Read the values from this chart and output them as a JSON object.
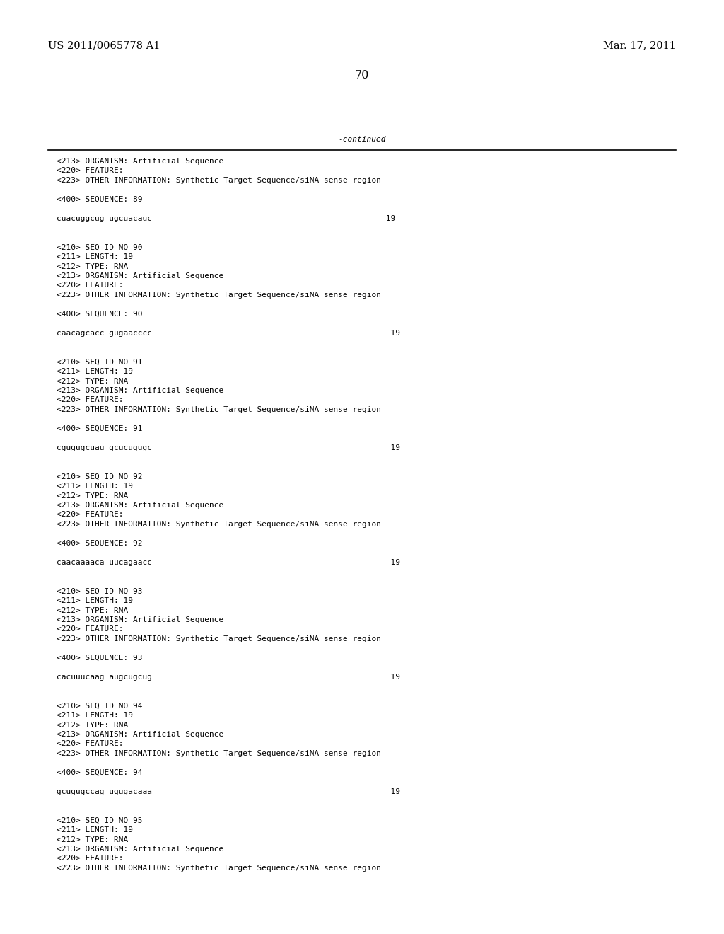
{
  "patent_left": "US 2011/0065778 A1",
  "patent_right": "Mar. 17, 2011",
  "page_number": "70",
  "continued_label": "-continued",
  "background_color": "#ffffff",
  "text_color": "#000000",
  "font_size_header": 10.5,
  "font_size_page": 11.5,
  "font_size_body": 8.0,
  "body_lines": [
    "<213> ORGANISM: Artificial Sequence",
    "<220> FEATURE:",
    "<223> OTHER INFORMATION: Synthetic Target Sequence/siNA sense region",
    "",
    "<400> SEQUENCE: 89",
    "",
    "cuacuggcug ugcuacauc                                                 19",
    "",
    "",
    "<210> SEQ ID NO 90",
    "<211> LENGTH: 19",
    "<212> TYPE: RNA",
    "<213> ORGANISM: Artificial Sequence",
    "<220> FEATURE:",
    "<223> OTHER INFORMATION: Synthetic Target Sequence/siNA sense region",
    "",
    "<400> SEQUENCE: 90",
    "",
    "caacagcacc gugaacccc                                                  19",
    "",
    "",
    "<210> SEQ ID NO 91",
    "<211> LENGTH: 19",
    "<212> TYPE: RNA",
    "<213> ORGANISM: Artificial Sequence",
    "<220> FEATURE:",
    "<223> OTHER INFORMATION: Synthetic Target Sequence/siNA sense region",
    "",
    "<400> SEQUENCE: 91",
    "",
    "cgugugcuau gcucugugc                                                  19",
    "",
    "",
    "<210> SEQ ID NO 92",
    "<211> LENGTH: 19",
    "<212> TYPE: RNA",
    "<213> ORGANISM: Artificial Sequence",
    "<220> FEATURE:",
    "<223> OTHER INFORMATION: Synthetic Target Sequence/siNA sense region",
    "",
    "<400> SEQUENCE: 92",
    "",
    "caacaaaaca uucagaacc                                                  19",
    "",
    "",
    "<210> SEQ ID NO 93",
    "<211> LENGTH: 19",
    "<212> TYPE: RNA",
    "<213> ORGANISM: Artificial Sequence",
    "<220> FEATURE:",
    "<223> OTHER INFORMATION: Synthetic Target Sequence/siNA sense region",
    "",
    "<400> SEQUENCE: 93",
    "",
    "cacuuucaag augcugcug                                                  19",
    "",
    "",
    "<210> SEQ ID NO 94",
    "<211> LENGTH: 19",
    "<212> TYPE: RNA",
    "<213> ORGANISM: Artificial Sequence",
    "<220> FEATURE:",
    "<223> OTHER INFORMATION: Synthetic Target Sequence/siNA sense region",
    "",
    "<400> SEQUENCE: 94",
    "",
    "gcugugccag ugugacaaa                                                  19",
    "",
    "",
    "<210> SEQ ID NO 95",
    "<211> LENGTH: 19",
    "<212> TYPE: RNA",
    "<213> ORGANISM: Artificial Sequence",
    "<220> FEATURE:",
    "<223> OTHER INFORMATION: Synthetic Target Sequence/siNA sense region"
  ]
}
